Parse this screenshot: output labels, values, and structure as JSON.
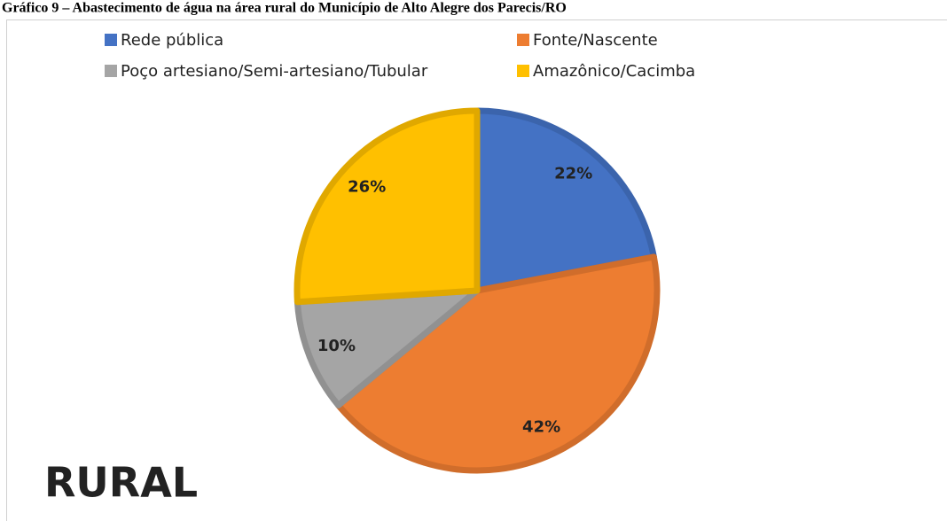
{
  "chart_data": {
    "type": "pie",
    "title": "Gráfico 9 – Abastecimento de água na área rural do Município de Alto Alegre dos Parecis/RO",
    "annotation": "RURAL",
    "categories": [
      "Rede pública",
      "Fonte/Nascente",
      "Poço artesiano/Semi-artesiano/Tubular",
      "Amazônico/Cacimba"
    ],
    "values": [
      22,
      42,
      10,
      26
    ],
    "value_labels": [
      "22%",
      "42%",
      "10%",
      "26%"
    ],
    "colors": [
      "#4472c4",
      "#ed7d31",
      "#a5a5a5",
      "#ffc000"
    ]
  }
}
